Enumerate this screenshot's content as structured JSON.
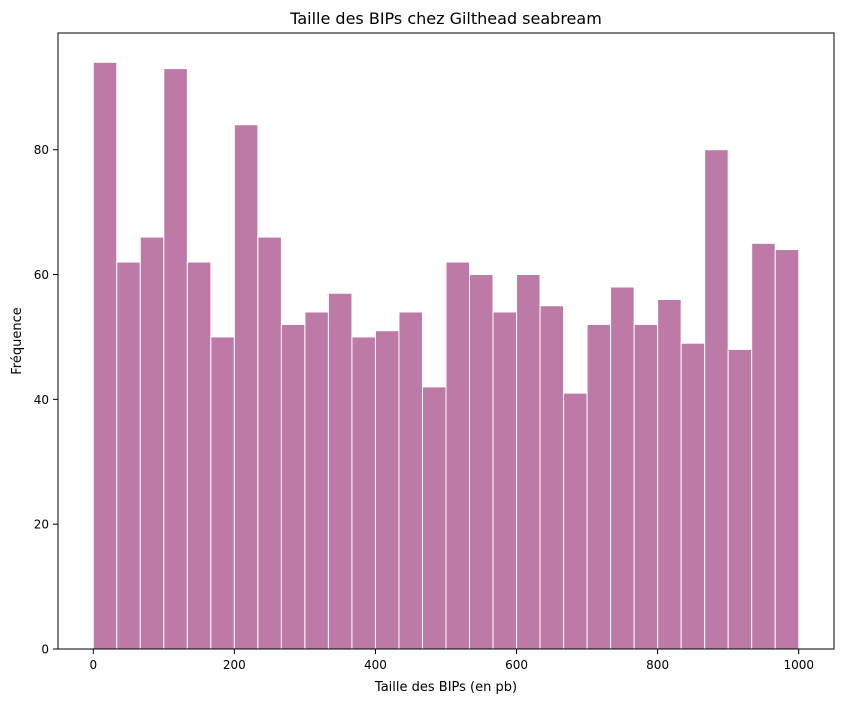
{
  "chart_data": {
    "type": "bar",
    "title": "Taille des BIPs chez Gilthead seabream",
    "xlabel": "Taille des BIPs (en pb)",
    "ylabel": "Fréquence",
    "bin_width": 33.33,
    "bins": [
      {
        "start": 0,
        "end": 33.33,
        "value": 94
      },
      {
        "start": 33.33,
        "end": 66.67,
        "value": 62
      },
      {
        "start": 66.67,
        "end": 100,
        "value": 66
      },
      {
        "start": 100,
        "end": 133.33,
        "value": 93
      },
      {
        "start": 133.33,
        "end": 166.67,
        "value": 62
      },
      {
        "start": 166.67,
        "end": 200,
        "value": 50
      },
      {
        "start": 200,
        "end": 233.33,
        "value": 84
      },
      {
        "start": 233.33,
        "end": 266.67,
        "value": 66
      },
      {
        "start": 266.67,
        "end": 300,
        "value": 52
      },
      {
        "start": 300,
        "end": 333.33,
        "value": 54
      },
      {
        "start": 333.33,
        "end": 366.67,
        "value": 57
      },
      {
        "start": 366.67,
        "end": 400,
        "value": 50
      },
      {
        "start": 400,
        "end": 433.33,
        "value": 51
      },
      {
        "start": 433.33,
        "end": 466.67,
        "value": 54
      },
      {
        "start": 466.67,
        "end": 500,
        "value": 42
      },
      {
        "start": 500,
        "end": 533.33,
        "value": 62
      },
      {
        "start": 533.33,
        "end": 566.67,
        "value": 60
      },
      {
        "start": 566.67,
        "end": 600,
        "value": 54
      },
      {
        "start": 600,
        "end": 633.33,
        "value": 60
      },
      {
        "start": 633.33,
        "end": 666.67,
        "value": 55
      },
      {
        "start": 666.67,
        "end": 700,
        "value": 41
      },
      {
        "start": 700,
        "end": 733.33,
        "value": 52
      },
      {
        "start": 733.33,
        "end": 766.67,
        "value": 58
      },
      {
        "start": 766.67,
        "end": 800,
        "value": 52
      },
      {
        "start": 800,
        "end": 833.33,
        "value": 56
      },
      {
        "start": 833.33,
        "end": 866.67,
        "value": 49
      },
      {
        "start": 866.67,
        "end": 900,
        "value": 80
      },
      {
        "start": 900,
        "end": 933.33,
        "value": 48
      },
      {
        "start": 933.33,
        "end": 966.67,
        "value": 65
      },
      {
        "start": 966.67,
        "end": 1000,
        "value": 64
      }
    ],
    "xlim": [
      -50,
      1050
    ],
    "ylim": [
      0,
      98.7
    ],
    "xticks": [
      0,
      200,
      400,
      600,
      800,
      1000
    ],
    "yticks": [
      0,
      20,
      40,
      60,
      80
    ],
    "bar_color": "#bd7aa6",
    "bar_edge_color": "#ffffff",
    "grid": false
  }
}
